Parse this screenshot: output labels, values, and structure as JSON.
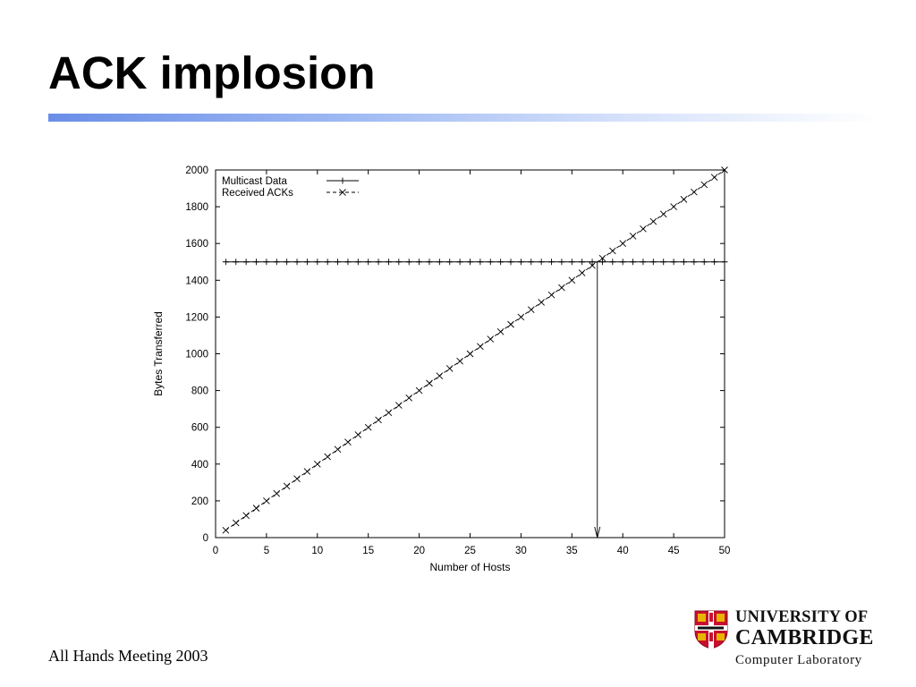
{
  "slide": {
    "title": "ACK implosion",
    "footer": "All Hands Meeting 2003"
  },
  "logo": {
    "line1": "UNIVERSITY OF",
    "line2": "CAMBRIDGE",
    "line3": "Computer  Laboratory",
    "shield_icon": "cambridge-shield-icon",
    "colors": {
      "red": "#c8102e",
      "gold": "#e8b400",
      "white": "#ffffff"
    }
  },
  "chart_data": {
    "type": "line",
    "title": "",
    "xlabel": "Number of Hosts",
    "ylabel": "Bytes Transferred",
    "xlim": [
      0,
      50
    ],
    "ylim": [
      0,
      2000
    ],
    "xticks": [
      0,
      5,
      10,
      15,
      20,
      25,
      30,
      35,
      40,
      45,
      50
    ],
    "yticks": [
      0,
      200,
      400,
      600,
      800,
      1000,
      1200,
      1400,
      1600,
      1800,
      2000
    ],
    "grid": false,
    "legend_position": "top-left",
    "x": [
      1,
      2,
      3,
      4,
      5,
      6,
      7,
      8,
      9,
      10,
      11,
      12,
      13,
      14,
      15,
      16,
      17,
      18,
      19,
      20,
      21,
      22,
      23,
      24,
      25,
      26,
      27,
      28,
      29,
      30,
      31,
      32,
      33,
      34,
      35,
      36,
      37,
      38,
      39,
      40,
      41,
      42,
      43,
      44,
      45,
      46,
      47,
      48,
      49,
      50
    ],
    "series": [
      {
        "name": "Multicast Data",
        "marker": "plus",
        "style": "solid",
        "values": [
          1500,
          1500,
          1500,
          1500,
          1500,
          1500,
          1500,
          1500,
          1500,
          1500,
          1500,
          1500,
          1500,
          1500,
          1500,
          1500,
          1500,
          1500,
          1500,
          1500,
          1500,
          1500,
          1500,
          1500,
          1500,
          1500,
          1500,
          1500,
          1500,
          1500,
          1500,
          1500,
          1500,
          1500,
          1500,
          1500,
          1500,
          1500,
          1500,
          1500,
          1500,
          1500,
          1500,
          1500,
          1500,
          1500,
          1500,
          1500,
          1500,
          1500
        ]
      },
      {
        "name": "Received ACKs",
        "marker": "cross",
        "style": "dashed",
        "values": [
          40,
          80,
          120,
          160,
          200,
          240,
          280,
          320,
          360,
          400,
          440,
          480,
          520,
          560,
          600,
          640,
          680,
          720,
          760,
          800,
          840,
          880,
          920,
          960,
          1000,
          1040,
          1080,
          1120,
          1160,
          1200,
          1240,
          1280,
          1320,
          1360,
          1400,
          1440,
          1480,
          1520,
          1560,
          1600,
          1640,
          1680,
          1720,
          1760,
          1800,
          1840,
          1880,
          1920,
          1960,
          2000
        ]
      }
    ],
    "annotations": [
      {
        "type": "arrow",
        "x": 37.5,
        "from_y": 1500,
        "to_y": 0,
        "text": ""
      }
    ],
    "colors": {
      "line": "#000000",
      "axis": "#000000"
    }
  }
}
